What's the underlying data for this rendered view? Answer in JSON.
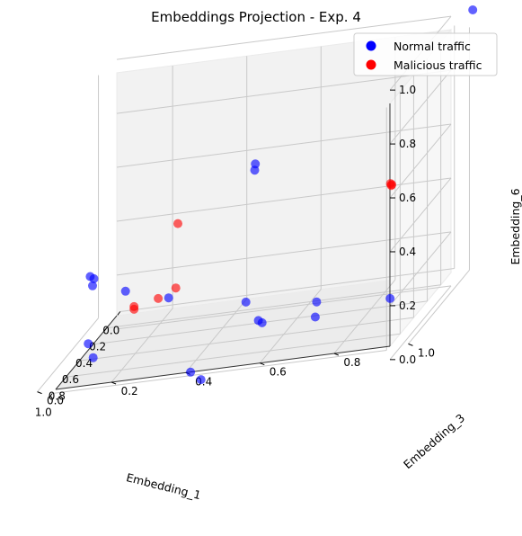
{
  "chart_data": {
    "type": "scatter",
    "projection": "3d",
    "title": "Embeddings Projection - Exp. 4",
    "xlabel": "Embedding_1",
    "ylabel": "Embedding_3",
    "zlabel": "Embedding_6",
    "xlim": [
      0,
      1
    ],
    "ylim": [
      0,
      1
    ],
    "zlim": [
      0,
      1
    ],
    "x_ticks": [
      "0.0",
      "0.2",
      "0.4",
      "0.6",
      "0.8",
      "1.0"
    ],
    "y_ticks": [
      "0.0",
      "0.2",
      "0.4",
      "0.6",
      "0.8",
      "1.0"
    ],
    "z_ticks": [
      "0.0",
      "0.2",
      "0.4",
      "0.6",
      "0.8",
      "1.0"
    ],
    "grid": true,
    "legend_position": "top-right",
    "series": [
      {
        "name": "Normal traffic",
        "color": "#0000ff",
        "points": [
          {
            "x": 0.0,
            "y": 1.0,
            "z": 1.0
          },
          {
            "x": 0.58,
            "y": 0.52,
            "z": 0.69
          },
          {
            "x": 0.59,
            "y": 0.52,
            "z": 0.67
          },
          {
            "x": 0.7,
            "y": 0.56,
            "z": 0.13
          },
          {
            "x": 0.7,
            "y": 0.55,
            "z": 0.14
          },
          {
            "x": 0.2,
            "y": 0.0,
            "z": 0.0
          },
          {
            "x": 0.3,
            "y": 0.03,
            "z": 0.24
          },
          {
            "x": 0.47,
            "y": 0.15,
            "z": 0.25
          },
          {
            "x": 0.6,
            "y": 0.29,
            "z": 0.24
          },
          {
            "x": 0.72,
            "y": 0.52,
            "z": 0.22
          },
          {
            "x": 0.28,
            "y": 0.02,
            "z": 0.27
          },
          {
            "x": 0.28,
            "y": 0.03,
            "z": 0.26
          },
          {
            "x": 0.4,
            "y": 0.05,
            "z": 0.0
          },
          {
            "x": 0.89,
            "y": 0.43,
            "z": 0.0
          },
          {
            "x": 0.77,
            "y": 0.38,
            "z": 0.0
          },
          {
            "x": 0.88,
            "y": 0.74,
            "z": 0.23
          },
          {
            "x": 0.9,
            "y": 0.74,
            "z": 0.18
          },
          {
            "x": 1.0,
            "y": 0.96,
            "z": 0.24
          }
        ]
      },
      {
        "name": "Malicious traffic",
        "color": "#ff0000",
        "points": [
          {
            "x": 0.3,
            "y": 0.26,
            "z": 0.43
          },
          {
            "x": 0.33,
            "y": 0.26,
            "z": 0.2
          },
          {
            "x": 0.4,
            "y": 0.16,
            "z": 0.17
          },
          {
            "x": 0.4,
            "y": 0.16,
            "z": 0.16
          },
          {
            "x": 0.59,
            "y": 0.26,
            "z": 0.24
          },
          {
            "x": 0.92,
            "y": 0.95,
            "z": 0.64
          },
          {
            "x": 0.93,
            "y": 0.95,
            "z": 0.64
          },
          {
            "x": 0.94,
            "y": 0.95,
            "z": 0.65
          }
        ]
      }
    ]
  }
}
